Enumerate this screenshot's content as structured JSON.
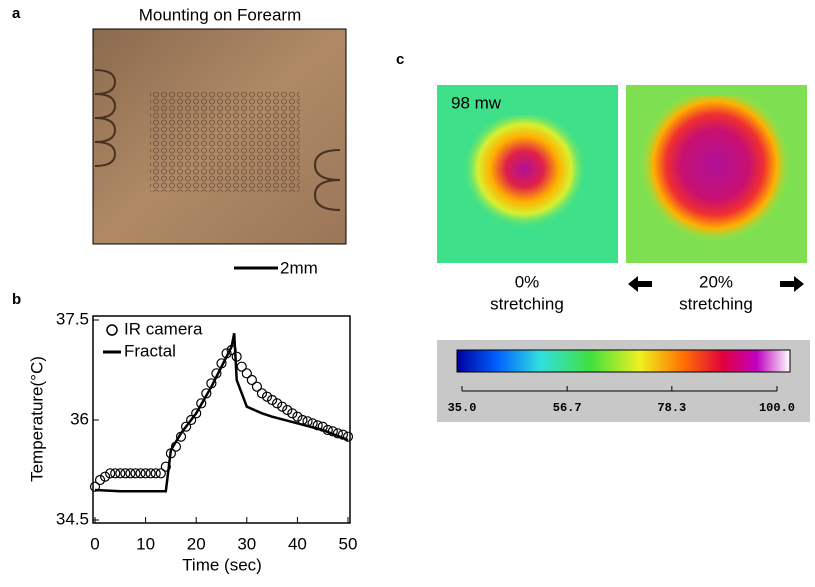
{
  "panel_labels": [
    "a",
    "b",
    "c"
  ],
  "photo": {
    "title": "Mounting on Forearm",
    "scale_bar": "2mm"
  },
  "heatmaps": {
    "power": "98 mw",
    "left": {
      "strain": "0%",
      "label": "stretching"
    },
    "right": {
      "strain": "20%",
      "label": "stretching"
    }
  },
  "colorbar": {
    "lim": [
      35,
      100
    ],
    "ticks": [
      {
        "value": 35,
        "label": "35.0"
      },
      {
        "value": 56.7,
        "label": "56.7"
      },
      {
        "value": 78.3,
        "label": "78.3"
      },
      {
        "value": 100,
        "label": "100.0"
      }
    ]
  },
  "chart_data": {
    "type": "line",
    "xlabel": "Time (sec)",
    "ylabel": "Temperature(°C)",
    "xlim": [
      0,
      50
    ],
    "xticks": [
      0,
      10,
      20,
      30,
      40,
      50
    ],
    "ylim": [
      34.5,
      37.5
    ],
    "yticks": [
      34.5,
      36,
      37.5
    ],
    "legend": "upper left",
    "series": [
      {
        "name": "IR camera",
        "color": "#000000",
        "style": "markers",
        "x": [
          0,
          1,
          2,
          3,
          4,
          5,
          6,
          7,
          8,
          9,
          10,
          11,
          12,
          13,
          14,
          15,
          16,
          17,
          18,
          19,
          20,
          21,
          22,
          23,
          24,
          25,
          26,
          27,
          28,
          29,
          30,
          31,
          32,
          33,
          34,
          35,
          36,
          37,
          38,
          39,
          40,
          41,
          42,
          43,
          44,
          45,
          46,
          47,
          48,
          49,
          50
        ],
        "values": [
          35.0,
          35.1,
          35.15,
          35.2,
          35.2,
          35.2,
          35.2,
          35.2,
          35.2,
          35.2,
          35.2,
          35.2,
          35.2,
          35.2,
          35.3,
          35.5,
          35.6,
          35.75,
          35.9,
          36.0,
          36.1,
          36.25,
          36.4,
          36.55,
          36.7,
          36.85,
          37.0,
          37.05,
          36.95,
          36.8,
          36.7,
          36.6,
          36.5,
          36.4,
          36.35,
          36.3,
          36.25,
          36.2,
          36.15,
          36.1,
          36.05,
          36.0,
          35.98,
          35.95,
          35.92,
          35.9,
          35.85,
          35.83,
          35.8,
          35.78,
          35.75
        ]
      },
      {
        "name": "Fractal",
        "color": "#000000",
        "style": "line",
        "x": [
          0,
          5,
          10,
          14,
          15,
          17,
          20,
          23,
          25,
          27,
          27.5,
          28,
          30,
          33,
          35,
          40,
          45,
          50
        ],
        "values": [
          34.95,
          34.93,
          34.93,
          34.93,
          35.55,
          35.8,
          36.1,
          36.5,
          36.8,
          37.1,
          37.3,
          36.6,
          36.2,
          36.1,
          36.05,
          35.95,
          35.85,
          35.7
        ]
      }
    ]
  }
}
